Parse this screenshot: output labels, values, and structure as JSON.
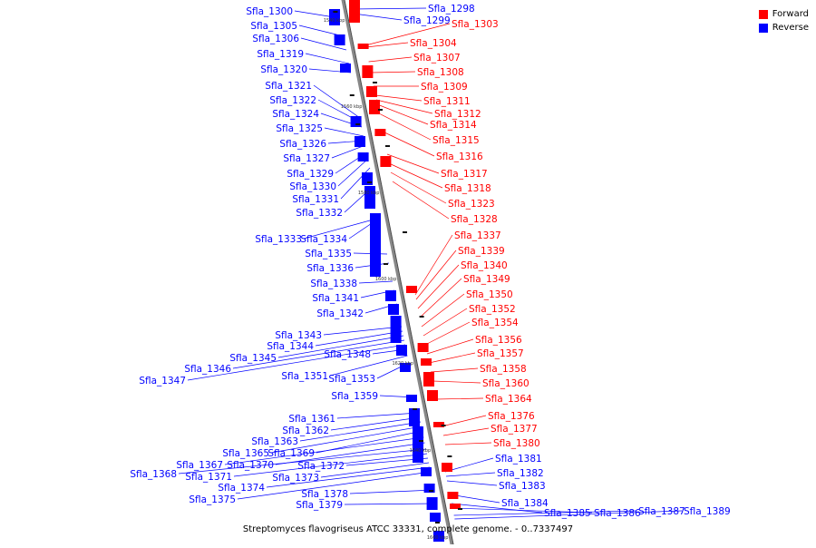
{
  "legend": {
    "forward_label": "Forward",
    "reverse_label": "Reverse",
    "forward_color": "#ff0000",
    "reverse_color": "#0000ff"
  },
  "caption": "Streptomyces flavogriseus ATCC 33331, complete genome. - 0..7337497",
  "ticks": [
    "1540 kbp",
    "1560 kbp",
    "1580 kbp",
    "1600 kbp",
    "1620 kbp",
    "1640 kbp",
    "1660 kbp"
  ],
  "reverse_genes": [
    "Sfla_1300",
    "Sfla_1305",
    "Sfla_1306",
    "Sfla_1319",
    "Sfla_1320",
    "Sfla_1321",
    "Sfla_1322",
    "Sfla_1324",
    "Sfla_1325",
    "Sfla_1326",
    "Sfla_1327",
    "Sfla_1329",
    "Sfla_1330",
    "Sfla_1331",
    "Sfla_1332",
    "Sfla_1333",
    "Sfla_1334",
    "Sfla_1335",
    "Sfla_1336",
    "Sfla_1338",
    "Sfla_1341",
    "Sfla_1342",
    "Sfla_1343",
    "Sfla_1344",
    "Sfla_1345",
    "Sfla_1346",
    "Sfla_1347",
    "Sfla_1348",
    "Sfla_1351",
    "Sfla_1353",
    "Sfla_1359",
    "Sfla_1361",
    "Sfla_1362",
    "Sfla_1363",
    "Sfla_1365",
    "Sfla_1369",
    "Sfla_1367",
    "Sfla_1370",
    "Sfla_1368",
    "Sfla_1371",
    "Sfla_1372",
    "Sfla_1373",
    "Sfla_1374",
    "Sfla_1375",
    "Sfla_1378",
    "Sfla_1379",
    "Sfla_1298",
    "Sfla_1299",
    "Sfla_1381",
    "Sfla_1382",
    "Sfla_1383",
    "Sfla_1384",
    "Sfla_1385",
    "Sfla_1386",
    "Sfla_1387",
    "Sfla_1389"
  ],
  "forward_genes": [
    "Sfla_1303",
    "Sfla_1304",
    "Sfla_1307",
    "Sfla_1308",
    "Sfla_1309",
    "Sfla_1311",
    "Sfla_1312",
    "Sfla_1314",
    "Sfla_1315",
    "Sfla_1316",
    "Sfla_1317",
    "Sfla_1318",
    "Sfla_1323",
    "Sfla_1328",
    "Sfla_1337",
    "Sfla_1339",
    "Sfla_1340",
    "Sfla_1349",
    "Sfla_1350",
    "Sfla_1352",
    "Sfla_1354",
    "Sfla_1356",
    "Sfla_1357",
    "Sfla_1358",
    "Sfla_1360",
    "Sfla_1364",
    "Sfla_1376",
    "Sfla_1377",
    "Sfla_1380"
  ]
}
